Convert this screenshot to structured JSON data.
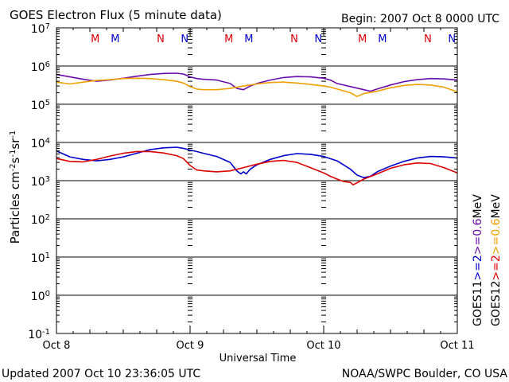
{
  "chart_data": {
    "type": "line",
    "title": "GOES Electron Flux (5 minute data)",
    "begin_label": "Begin: 2007 Oct 8 0000 UTC",
    "xlabel": "Universal Time",
    "ylabel_main": "Particles cm",
    "ylabel_sup1": "-2",
    "ylabel_mid1": "s",
    "ylabel_sup2": "-1",
    "ylabel_mid2": "sr",
    "ylabel_sup3": "-1",
    "footer_left": "Updated 2007 Oct 10 23:36:05 UTC",
    "footer_right": "NOAA/SWPC Boulder, CO USA",
    "x_range_days": [
      0,
      3
    ],
    "x_ticks": [
      {
        "day": 0,
        "label": "Oct 8"
      },
      {
        "day": 1,
        "label": "Oct 9"
      },
      {
        "day": 2,
        "label": "Oct 10"
      },
      {
        "day": 3,
        "label": "Oct 11"
      }
    ],
    "y_scale": "log",
    "y_range": [
      0.1,
      10000000
    ],
    "y_ticks": [
      {
        "exp": "7"
      },
      {
        "exp": "6"
      },
      {
        "exp": "5"
      },
      {
        "exp": "4"
      },
      {
        "exp": "3"
      },
      {
        "exp": "2"
      },
      {
        "exp": "1"
      },
      {
        "exp": "0"
      },
      {
        "exp": "-1"
      }
    ],
    "reference_line": {
      "value": 1000,
      "style": "dashed"
    },
    "markers": [
      {
        "day": 0.29,
        "label": "M",
        "color": "#dd0000"
      },
      {
        "day": 0.44,
        "label": "M",
        "color": "#0000cc"
      },
      {
        "day": 0.78,
        "label": "N",
        "color": "#dd0000"
      },
      {
        "day": 0.96,
        "label": "N",
        "color": "#0000cc"
      },
      {
        "day": 1.29,
        "label": "M",
        "color": "#dd0000"
      },
      {
        "day": 1.44,
        "label": "M",
        "color": "#0000cc"
      },
      {
        "day": 1.78,
        "label": "N",
        "color": "#dd0000"
      },
      {
        "day": 1.96,
        "label": "N",
        "color": "#0000cc"
      },
      {
        "day": 2.29,
        "label": "M",
        "color": "#dd0000"
      },
      {
        "day": 2.44,
        "label": "M",
        "color": "#0000cc"
      },
      {
        "day": 2.78,
        "label": "N",
        "color": "#dd0000"
      },
      {
        "day": 2.96,
        "label": "N",
        "color": "#0000cc"
      }
    ],
    "legend": {
      "placement": "right",
      "columns": [
        {
          "sat": "GOES11",
          "e2": ">=2",
          "e06": ">=0.6",
          "unit": "MeV",
          "color_e2": "#0000cc",
          "color_e06": "#6a0dad"
        },
        {
          "sat": "GOES12",
          "e2": ">=2",
          "e06": ">=0.6",
          "unit": "MeV",
          "color_e2": "#dd0000",
          "color_e06": "#f0a000"
        }
      ]
    },
    "series": [
      {
        "name": "GOES11 >=0.6 MeV",
        "color": "#6a0dad",
        "points": [
          [
            0,
            600000
          ],
          [
            0.1,
            520000
          ],
          [
            0.2,
            450000
          ],
          [
            0.3,
            400000
          ],
          [
            0.4,
            430000
          ],
          [
            0.5,
            480000
          ],
          [
            0.6,
            540000
          ],
          [
            0.7,
            600000
          ],
          [
            0.8,
            640000
          ],
          [
            0.9,
            650000
          ],
          [
            0.95,
            620000
          ],
          [
            1.0,
            520000
          ],
          [
            1.05,
            470000
          ],
          [
            1.1,
            450000
          ],
          [
            1.2,
            430000
          ],
          [
            1.3,
            350000
          ],
          [
            1.35,
            260000
          ],
          [
            1.4,
            240000
          ],
          [
            1.45,
            300000
          ],
          [
            1.5,
            350000
          ],
          [
            1.6,
            430000
          ],
          [
            1.7,
            500000
          ],
          [
            1.8,
            530000
          ],
          [
            1.9,
            520000
          ],
          [
            2.0,
            480000
          ],
          [
            2.05,
            430000
          ],
          [
            2.1,
            350000
          ],
          [
            2.2,
            290000
          ],
          [
            2.3,
            240000
          ],
          [
            2.35,
            220000
          ],
          [
            2.4,
            250000
          ],
          [
            2.5,
            320000
          ],
          [
            2.6,
            390000
          ],
          [
            2.7,
            440000
          ],
          [
            2.8,
            470000
          ],
          [
            2.9,
            460000
          ],
          [
            3.0,
            430000
          ]
        ]
      },
      {
        "name": "GOES12 >=0.6 MeV",
        "color": "#f0a000",
        "points": [
          [
            0,
            380000
          ],
          [
            0.1,
            340000
          ],
          [
            0.2,
            380000
          ],
          [
            0.3,
            420000
          ],
          [
            0.4,
            440000
          ],
          [
            0.5,
            470000
          ],
          [
            0.6,
            480000
          ],
          [
            0.7,
            470000
          ],
          [
            0.8,
            440000
          ],
          [
            0.9,
            400000
          ],
          [
            0.95,
            360000
          ],
          [
            1.0,
            290000
          ],
          [
            1.05,
            250000
          ],
          [
            1.1,
            240000
          ],
          [
            1.2,
            240000
          ],
          [
            1.3,
            260000
          ],
          [
            1.4,
            300000
          ],
          [
            1.5,
            340000
          ],
          [
            1.6,
            370000
          ],
          [
            1.7,
            380000
          ],
          [
            1.8,
            360000
          ],
          [
            1.9,
            330000
          ],
          [
            2.0,
            300000
          ],
          [
            2.05,
            280000
          ],
          [
            2.1,
            250000
          ],
          [
            2.2,
            200000
          ],
          [
            2.25,
            160000
          ],
          [
            2.3,
            190000
          ],
          [
            2.4,
            220000
          ],
          [
            2.5,
            270000
          ],
          [
            2.6,
            310000
          ],
          [
            2.7,
            330000
          ],
          [
            2.8,
            320000
          ],
          [
            2.9,
            280000
          ],
          [
            3.0,
            210000
          ]
        ]
      },
      {
        "name": "GOES11 >=2 MeV",
        "color": "#0000cc",
        "points": [
          [
            0,
            6000
          ],
          [
            0.05,
            5000
          ],
          [
            0.1,
            4200
          ],
          [
            0.2,
            3600
          ],
          [
            0.3,
            3300
          ],
          [
            0.4,
            3600
          ],
          [
            0.5,
            4200
          ],
          [
            0.6,
            5200
          ],
          [
            0.7,
            6500
          ],
          [
            0.8,
            7200
          ],
          [
            0.9,
            7500
          ],
          [
            0.95,
            7000
          ],
          [
            1.0,
            6300
          ],
          [
            1.05,
            5800
          ],
          [
            1.1,
            5200
          ],
          [
            1.2,
            4300
          ],
          [
            1.3,
            3000
          ],
          [
            1.35,
            1800
          ],
          [
            1.38,
            1500
          ],
          [
            1.4,
            1700
          ],
          [
            1.42,
            1500
          ],
          [
            1.45,
            2000
          ],
          [
            1.5,
            2600
          ],
          [
            1.6,
            3600
          ],
          [
            1.7,
            4500
          ],
          [
            1.8,
            5100
          ],
          [
            1.9,
            4900
          ],
          [
            2.0,
            4300
          ],
          [
            2.1,
            3300
          ],
          [
            2.2,
            2000
          ],
          [
            2.25,
            1400
          ],
          [
            2.3,
            1200
          ],
          [
            2.35,
            1300
          ],
          [
            2.4,
            1700
          ],
          [
            2.5,
            2400
          ],
          [
            2.6,
            3200
          ],
          [
            2.7,
            3900
          ],
          [
            2.8,
            4300
          ],
          [
            2.9,
            4200
          ],
          [
            3.0,
            3900
          ]
        ]
      },
      {
        "name": "GOES12 >=2 MeV",
        "color": "#dd0000",
        "points": [
          [
            0,
            3800
          ],
          [
            0.1,
            3200
          ],
          [
            0.2,
            3100
          ],
          [
            0.3,
            3600
          ],
          [
            0.4,
            4400
          ],
          [
            0.5,
            5200
          ],
          [
            0.6,
            5800
          ],
          [
            0.7,
            5800
          ],
          [
            0.8,
            5300
          ],
          [
            0.9,
            4500
          ],
          [
            0.95,
            3800
          ],
          [
            1.0,
            2500
          ],
          [
            1.05,
            1900
          ],
          [
            1.1,
            1800
          ],
          [
            1.2,
            1700
          ],
          [
            1.3,
            1800
          ],
          [
            1.4,
            2200
          ],
          [
            1.5,
            2700
          ],
          [
            1.6,
            3200
          ],
          [
            1.7,
            3400
          ],
          [
            1.8,
            3000
          ],
          [
            1.9,
            2200
          ],
          [
            2.0,
            1600
          ],
          [
            2.05,
            1300
          ],
          [
            2.1,
            1100
          ],
          [
            2.15,
            950
          ],
          [
            2.2,
            900
          ],
          [
            2.22,
            780
          ],
          [
            2.25,
            880
          ],
          [
            2.3,
            1100
          ],
          [
            2.4,
            1500
          ],
          [
            2.5,
            2100
          ],
          [
            2.6,
            2600
          ],
          [
            2.7,
            2900
          ],
          [
            2.8,
            2800
          ],
          [
            2.9,
            2200
          ],
          [
            3.0,
            1600
          ]
        ]
      }
    ]
  }
}
